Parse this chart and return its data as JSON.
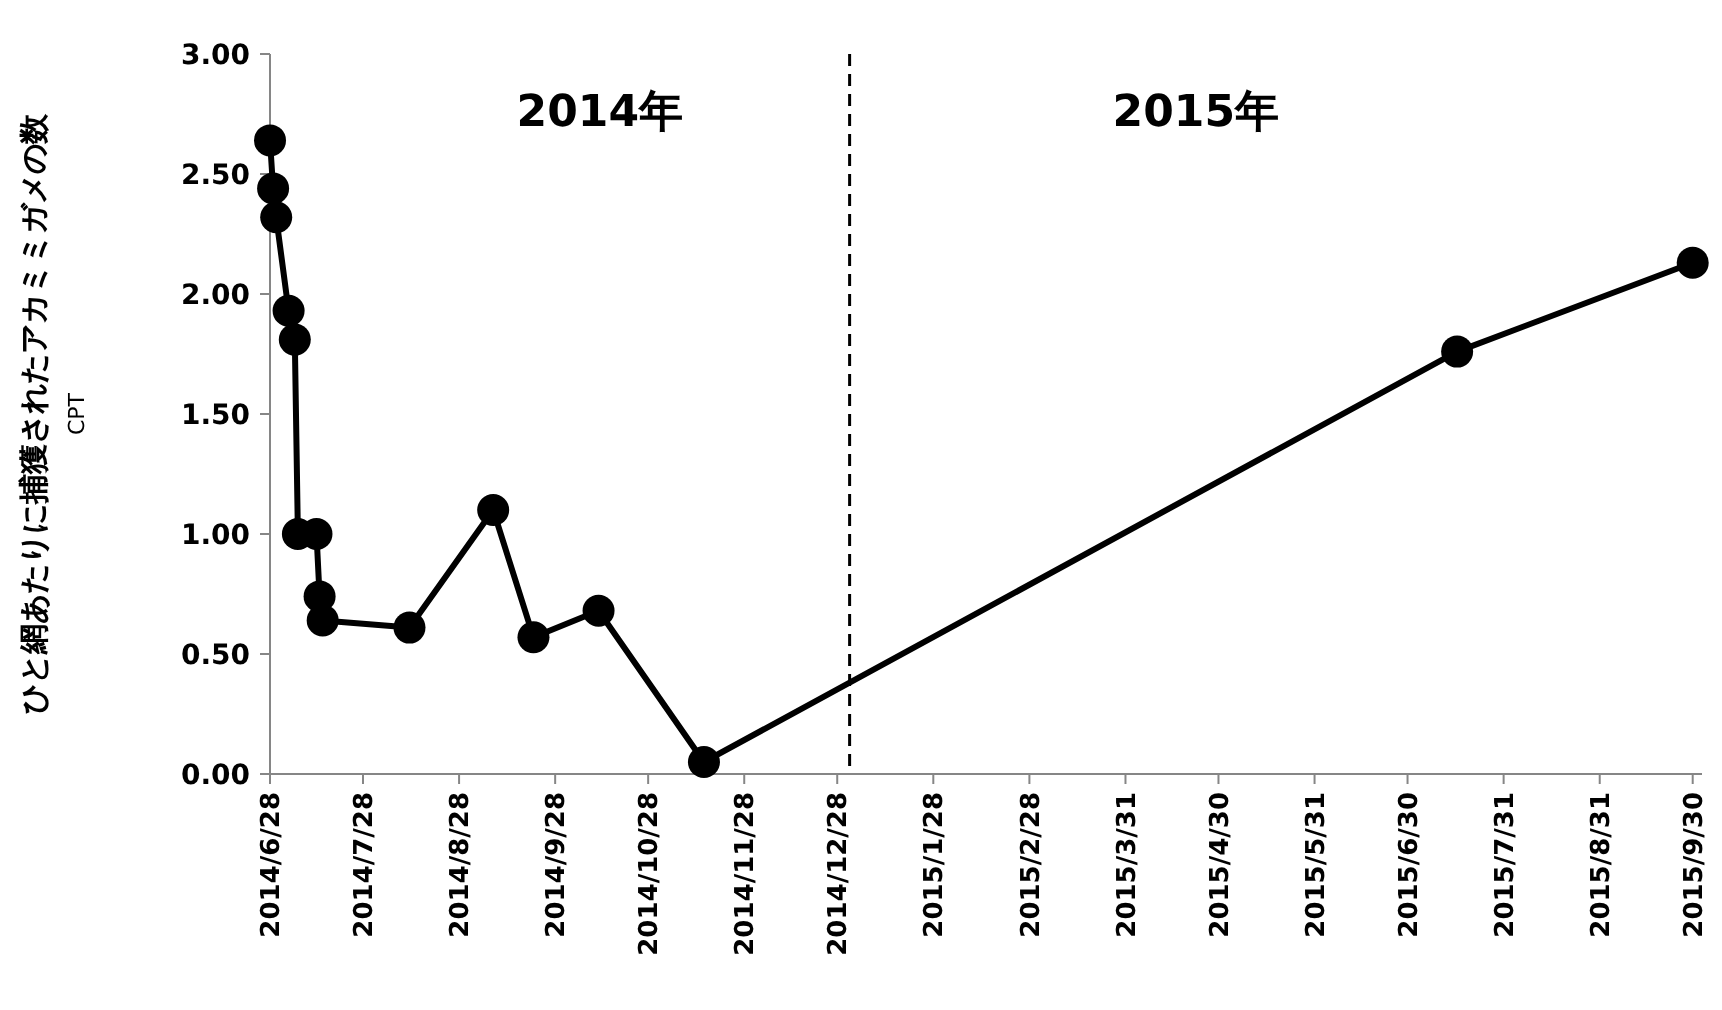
{
  "chart_data": {
    "type": "line",
    "ylabel": "ひと網あたりに捕獲されたアカミミガメの数\nCPT",
    "annotations": [
      "2014年",
      "2015年"
    ],
    "x": [
      "2014-06-28",
      "2014-06-29",
      "2014-06-30",
      "2014-07-04",
      "2014-07-06",
      "2014-07-07",
      "2014-07-13",
      "2014-07-14",
      "2014-07-15",
      "2014-08-12",
      "2014-09-08",
      "2014-09-21",
      "2014-10-12",
      "2014-11-15",
      "2015-07-16",
      "2015-09-30"
    ],
    "series": [
      {
        "color": "#000000",
        "values": [
          2.64,
          2.44,
          2.32,
          1.93,
          1.81,
          1.0,
          1.0,
          0.74,
          0.64,
          0.61,
          1.1,
          0.57,
          0.68,
          0.05,
          1.76,
          2.13
        ]
      }
    ],
    "xlim": [
      "2014-06-28",
      "2015-10-03"
    ],
    "xticks": [
      {
        "value": "2014-06-28",
        "label": "2014/6/28"
      },
      {
        "value": "2014-07-28",
        "label": "2014/7/28"
      },
      {
        "value": "2014-08-28",
        "label": "2014/8/28"
      },
      {
        "value": "2014-09-28",
        "label": "2014/9/28"
      },
      {
        "value": "2014-10-28",
        "label": "2014/10/28"
      },
      {
        "value": "2014-11-28",
        "label": "2014/11/28"
      },
      {
        "value": "2014-12-28",
        "label": "2014/12/28"
      },
      {
        "value": "2015-01-28",
        "label": "2015/1/28"
      },
      {
        "value": "2015-02-28",
        "label": "2015/2/28"
      },
      {
        "value": "2015-03-31",
        "label": "2015/3/31"
      },
      {
        "value": "2015-04-30",
        "label": "2015/4/30"
      },
      {
        "value": "2015-05-31",
        "label": "2015/5/31"
      },
      {
        "value": "2015-06-30",
        "label": "2015/6/30"
      },
      {
        "value": "2015-07-31",
        "label": "2015/7/31"
      },
      {
        "value": "2015-08-31",
        "label": "2015/8/31"
      },
      {
        "value": "2015-09-30",
        "label": "2015/9/30"
      }
    ],
    "ylim": [
      0,
      3
    ],
    "yticks": [
      {
        "value": 0,
        "label": "0.00"
      },
      {
        "value": 0.5,
        "label": "0.50"
      },
      {
        "value": 1,
        "label": "1.00"
      },
      {
        "value": 1.5,
        "label": "1.50"
      },
      {
        "value": 2,
        "label": "2.00"
      },
      {
        "value": 2.5,
        "label": "2.50"
      },
      {
        "value": 3,
        "label": "3.00"
      }
    ],
    "ref_lines": [
      {
        "axis": "x",
        "value": "2015-01-01",
        "color": "#000000",
        "line_style": "dashed"
      }
    ],
    "marker": "circle",
    "line_style": "solid"
  }
}
